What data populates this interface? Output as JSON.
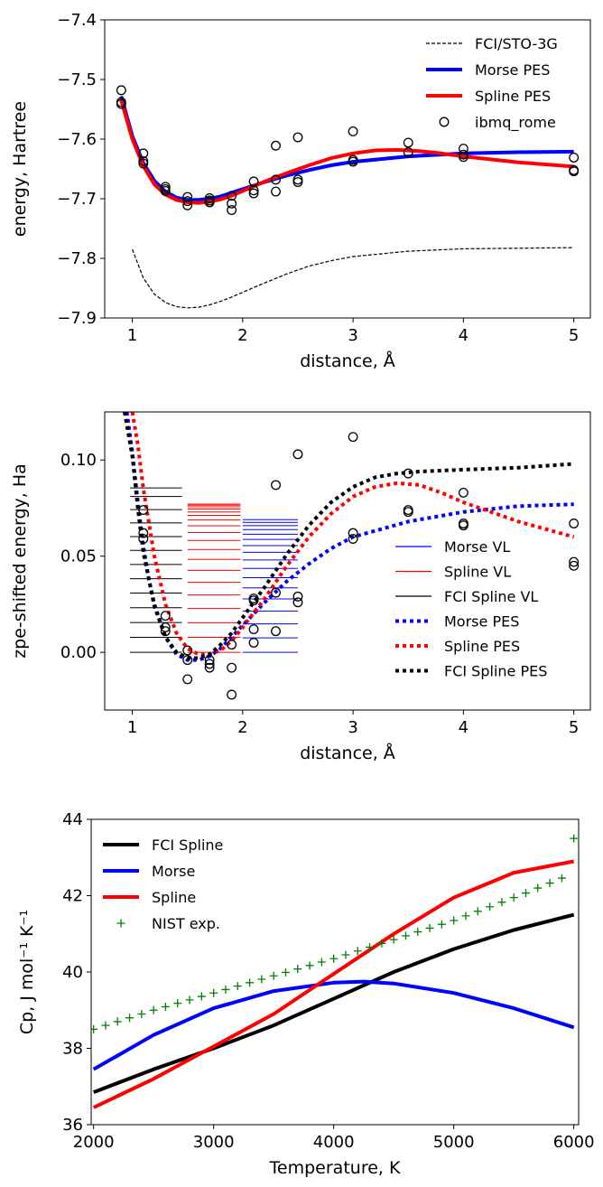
{
  "chart_data": [
    {
      "type": "line",
      "xlabel": "distance, Å",
      "ylabel": "energy, Hartree",
      "xlim": [
        0.75,
        5.15
      ],
      "ylim": [
        -7.9,
        -7.4
      ],
      "xticks": [
        1,
        2,
        3,
        4,
        5
      ],
      "yticks": [
        -7.9,
        -7.8,
        -7.7,
        -7.6,
        -7.5,
        -7.4
      ],
      "xtick_labels": [
        "1",
        "2",
        "3",
        "4",
        "5"
      ],
      "ytick_labels": [
        "−7.9",
        "−7.8",
        "−7.7",
        "−7.6",
        "−7.5",
        "−7.4"
      ],
      "legend_position": "top-right",
      "series": [
        {
          "name": "FCI/STO-3G",
          "style": "dashed",
          "color": "#000000",
          "x": [
            1.0,
            1.1,
            1.2,
            1.3,
            1.4,
            1.5,
            1.6,
            1.7,
            1.8,
            1.9,
            2.0,
            2.2,
            2.4,
            2.6,
            2.8,
            3.0,
            3.5,
            4.0,
            4.5,
            5.0
          ],
          "y": [
            -7.785,
            -7.833,
            -7.86,
            -7.874,
            -7.881,
            -7.883,
            -7.882,
            -7.878,
            -7.872,
            -7.865,
            -7.857,
            -7.841,
            -7.826,
            -7.813,
            -7.804,
            -7.797,
            -7.788,
            -7.784,
            -7.783,
            -7.782
          ]
        },
        {
          "name": "Morse PES",
          "style": "solid",
          "color": "#0000ff",
          "x": [
            0.9,
            1.0,
            1.1,
            1.2,
            1.3,
            1.4,
            1.5,
            1.6,
            1.7,
            1.8,
            1.9,
            2.0,
            2.2,
            2.4,
            2.6,
            2.8,
            3.0,
            3.5,
            4.0,
            4.5,
            5.0
          ],
          "y": [
            -7.528,
            -7.595,
            -7.64,
            -7.67,
            -7.688,
            -7.698,
            -7.702,
            -7.702,
            -7.7,
            -7.696,
            -7.69,
            -7.684,
            -7.672,
            -7.661,
            -7.652,
            -7.644,
            -7.638,
            -7.629,
            -7.624,
            -7.622,
            -7.621
          ]
        },
        {
          "name": "Spline PES",
          "style": "solid",
          "color": "#ff0000",
          "x": [
            0.9,
            1.0,
            1.1,
            1.2,
            1.3,
            1.4,
            1.5,
            1.6,
            1.7,
            1.8,
            1.9,
            2.0,
            2.2,
            2.4,
            2.6,
            2.8,
            3.0,
            3.2,
            3.4,
            3.6,
            3.8,
            4.0,
            4.5,
            5.0
          ],
          "y": [
            -7.535,
            -7.6,
            -7.645,
            -7.676,
            -7.693,
            -7.702,
            -7.706,
            -7.707,
            -7.705,
            -7.701,
            -7.695,
            -7.687,
            -7.671,
            -7.657,
            -7.644,
            -7.632,
            -7.624,
            -7.619,
            -7.618,
            -7.62,
            -7.624,
            -7.629,
            -7.639,
            -7.646
          ]
        },
        {
          "name": "ibmq_rome",
          "style": "markers",
          "color": "#000000",
          "x": [
            0.9,
            0.9,
            0.9,
            1.1,
            1.1,
            1.1,
            1.3,
            1.3,
            1.3,
            1.5,
            1.5,
            1.5,
            1.7,
            1.7,
            1.7,
            1.9,
            1.9,
            1.9,
            2.1,
            2.1,
            2.1,
            2.3,
            2.3,
            2.3,
            2.5,
            2.5,
            2.5,
            3.0,
            3.0,
            3.0,
            3.5,
            3.5,
            4.0,
            4.0,
            4.0,
            5.0,
            5.0,
            5.0
          ],
          "y": [
            -7.518,
            -7.538,
            -7.541,
            -7.624,
            -7.637,
            -7.641,
            -7.68,
            -7.684,
            -7.687,
            -7.697,
            -7.704,
            -7.711,
            -7.699,
            -7.703,
            -7.706,
            -7.695,
            -7.708,
            -7.719,
            -7.671,
            -7.686,
            -7.691,
            -7.611,
            -7.668,
            -7.688,
            -7.597,
            -7.668,
            -7.672,
            -7.587,
            -7.635,
            -7.638,
            -7.606,
            -7.622,
            -7.616,
            -7.626,
            -7.63,
            -7.631,
            -7.652,
            -7.654
          ]
        }
      ]
    },
    {
      "type": "line",
      "xlabel": "distance, Å",
      "ylabel": "zpe-shifted energy, Ha",
      "xlim": [
        0.75,
        5.15
      ],
      "ylim": [
        -0.03,
        0.125
      ],
      "xticks": [
        1,
        2,
        3,
        4,
        5
      ],
      "yticks": [
        0.0,
        0.05,
        0.1
      ],
      "xtick_labels": [
        "1",
        "2",
        "3",
        "4",
        "5"
      ],
      "ytick_labels": [
        "0.00",
        "0.05",
        "0.10"
      ],
      "legend_position": "lower-right",
      "vibrational_levels": [
        {
          "name": "Morse VL",
          "color": "#0000ff",
          "x_range": [
            2.0,
            2.5
          ],
          "levels": [
            0.0,
            0.0075,
            0.0148,
            0.0215,
            0.0278,
            0.0335,
            0.0388,
            0.0436,
            0.048,
            0.052,
            0.0555,
            0.0587,
            0.0614,
            0.0638,
            0.0659,
            0.0676,
            0.069
          ]
        },
        {
          "name": "Spline VL",
          "color": "#ff0000",
          "x_range": [
            1.5,
            1.98
          ],
          "levels": [
            0.0,
            0.0078,
            0.0154,
            0.0228,
            0.0298,
            0.0364,
            0.0426,
            0.0483,
            0.0535,
            0.0582,
            0.0623,
            0.0658,
            0.0688,
            0.0712,
            0.073,
            0.0745,
            0.0757,
            0.0765,
            0.0771
          ]
        },
        {
          "name": "FCI Spline VL",
          "color": "#000000",
          "x_range": [
            0.98,
            1.45
          ],
          "levels": [
            0.0,
            0.0078,
            0.0155,
            0.0232,
            0.0308,
            0.0383,
            0.0457,
            0.053,
            0.0602,
            0.0673,
            0.0742,
            0.081,
            0.0855
          ]
        }
      ],
      "series": [
        {
          "name": "Morse PES",
          "style": "dotted",
          "color": "#0000ff",
          "x": [
            0.95,
            1.0,
            1.05,
            1.1,
            1.15,
            1.2,
            1.3,
            1.4,
            1.5,
            1.6,
            1.7,
            1.8,
            1.9,
            2.0,
            2.2,
            2.4,
            2.6,
            2.8,
            3.0,
            3.5,
            4.0,
            4.5,
            5.0
          ],
          "y": [
            0.125,
            0.104,
            0.078,
            0.055,
            0.038,
            0.025,
            0.008,
            -0.001,
            -0.004,
            -0.004,
            -0.002,
            0.002,
            0.008,
            0.014,
            0.026,
            0.037,
            0.046,
            0.054,
            0.06,
            0.068,
            0.073,
            0.076,
            0.077
          ]
        },
        {
          "name": "Spline PES",
          "style": "dotted",
          "color": "#ff0000",
          "x": [
            1.0,
            1.05,
            1.1,
            1.2,
            1.3,
            1.4,
            1.5,
            1.6,
            1.7,
            1.8,
            1.9,
            2.0,
            2.2,
            2.4,
            2.6,
            2.8,
            3.0,
            3.2,
            3.4,
            3.6,
            3.8,
            4.0,
            4.5,
            5.0
          ],
          "y": [
            0.125,
            0.108,
            0.085,
            0.05,
            0.025,
            0.01,
            0.002,
            -0.001,
            -0.001,
            0.001,
            0.006,
            0.013,
            0.028,
            0.045,
            0.06,
            0.072,
            0.081,
            0.086,
            0.088,
            0.087,
            0.083,
            0.078,
            0.068,
            0.06
          ]
        },
        {
          "name": "FCI Spline PES",
          "style": "dotted",
          "color": "#000000",
          "x": [
            0.93,
            1.0,
            1.05,
            1.1,
            1.2,
            1.3,
            1.4,
            1.5,
            1.6,
            1.7,
            1.8,
            1.9,
            2.0,
            2.2,
            2.4,
            2.6,
            2.8,
            3.0,
            3.2,
            3.4,
            3.6,
            4.0,
            4.5,
            5.0
          ],
          "y": [
            0.125,
            0.102,
            0.075,
            0.052,
            0.024,
            0.008,
            0.0,
            -0.003,
            -0.003,
            -0.001,
            0.004,
            0.01,
            0.018,
            0.034,
            0.051,
            0.066,
            0.078,
            0.086,
            0.091,
            0.093,
            0.094,
            0.095,
            0.096,
            0.098
          ]
        },
        {
          "name": "",
          "style": "markers",
          "color": "#000000",
          "x": [
            1.1,
            1.1,
            1.1,
            1.3,
            1.3,
            1.3,
            1.5,
            1.5,
            1.5,
            1.7,
            1.7,
            1.7,
            1.9,
            1.9,
            1.9,
            2.1,
            2.1,
            2.1,
            2.1,
            2.3,
            2.3,
            2.3,
            2.5,
            2.5,
            2.5,
            3.0,
            3.0,
            3.0,
            3.5,
            3.5,
            3.5,
            4.0,
            4.0,
            4.0,
            5.0,
            5.0,
            5.0
          ],
          "y": [
            0.074,
            0.062,
            0.059,
            0.019,
            0.013,
            0.011,
            0.001,
            -0.004,
            -0.014,
            -0.004,
            -0.006,
            -0.008,
            0.004,
            -0.008,
            -0.022,
            0.027,
            0.012,
            0.005,
            0.028,
            0.087,
            0.031,
            0.011,
            0.103,
            0.029,
            0.026,
            0.112,
            0.062,
            0.059,
            0.093,
            0.074,
            0.073,
            0.083,
            0.067,
            0.066,
            0.067,
            0.047,
            0.045
          ]
        }
      ]
    },
    {
      "type": "line",
      "xlabel": "Temperature, K",
      "ylabel": "Cp, J mol⁻¹ K⁻¹",
      "xlim": [
        1980,
        6040
      ],
      "ylim": [
        36,
        44
      ],
      "xticks": [
        2000,
        3000,
        4000,
        5000,
        6000
      ],
      "yticks": [
        36,
        38,
        40,
        42,
        44
      ],
      "xtick_labels": [
        "2000",
        "3000",
        "4000",
        "5000",
        "6000"
      ],
      "ytick_labels": [
        "36",
        "38",
        "40",
        "42",
        "44"
      ],
      "legend_position": "top-left",
      "series": [
        {
          "name": "FCI Spline",
          "style": "solid",
          "color": "#000000",
          "x": [
            2000,
            2500,
            3000,
            3500,
            4000,
            4500,
            5000,
            5500,
            6000
          ],
          "y": [
            36.85,
            37.45,
            38.0,
            38.6,
            39.3,
            40.0,
            40.6,
            41.1,
            41.5
          ]
        },
        {
          "name": "Morse",
          "style": "solid",
          "color": "#0000ff",
          "x": [
            2000,
            2500,
            3000,
            3500,
            4000,
            4250,
            4500,
            5000,
            5500,
            6000
          ],
          "y": [
            37.45,
            38.35,
            39.05,
            39.5,
            39.72,
            39.75,
            39.7,
            39.45,
            39.05,
            38.55
          ]
        },
        {
          "name": "Spline",
          "style": "solid",
          "color": "#ff0000",
          "x": [
            2000,
            2500,
            3000,
            3500,
            4000,
            4500,
            5000,
            5500,
            6000
          ],
          "y": [
            36.45,
            37.2,
            38.05,
            38.9,
            39.95,
            41.0,
            41.95,
            42.6,
            42.9
          ]
        },
        {
          "name": "NIST exp.",
          "style": "plus",
          "color": "#008000",
          "x": [
            2000,
            2100,
            2200,
            2300,
            2400,
            2500,
            2600,
            2700,
            2800,
            2900,
            3000,
            3100,
            3200,
            3300,
            3400,
            3500,
            3600,
            3700,
            3800,
            3900,
            4000,
            4100,
            4200,
            4300,
            4400,
            4500,
            4600,
            4700,
            4800,
            4900,
            5000,
            5100,
            5200,
            5300,
            5400,
            5500,
            5600,
            5700,
            5800,
            5900,
            6000
          ],
          "y": [
            38.5,
            38.6,
            38.7,
            38.8,
            38.9,
            39.0,
            39.09,
            39.18,
            39.27,
            39.36,
            39.45,
            39.54,
            39.63,
            39.72,
            39.81,
            39.9,
            39.99,
            40.08,
            40.17,
            40.26,
            40.35,
            40.45,
            40.55,
            40.65,
            40.75,
            40.85,
            40.95,
            41.05,
            41.15,
            41.25,
            41.35,
            41.47,
            41.59,
            41.71,
            41.83,
            41.95,
            42.07,
            42.2,
            42.33,
            42.46,
            43.5
          ]
        }
      ]
    }
  ]
}
